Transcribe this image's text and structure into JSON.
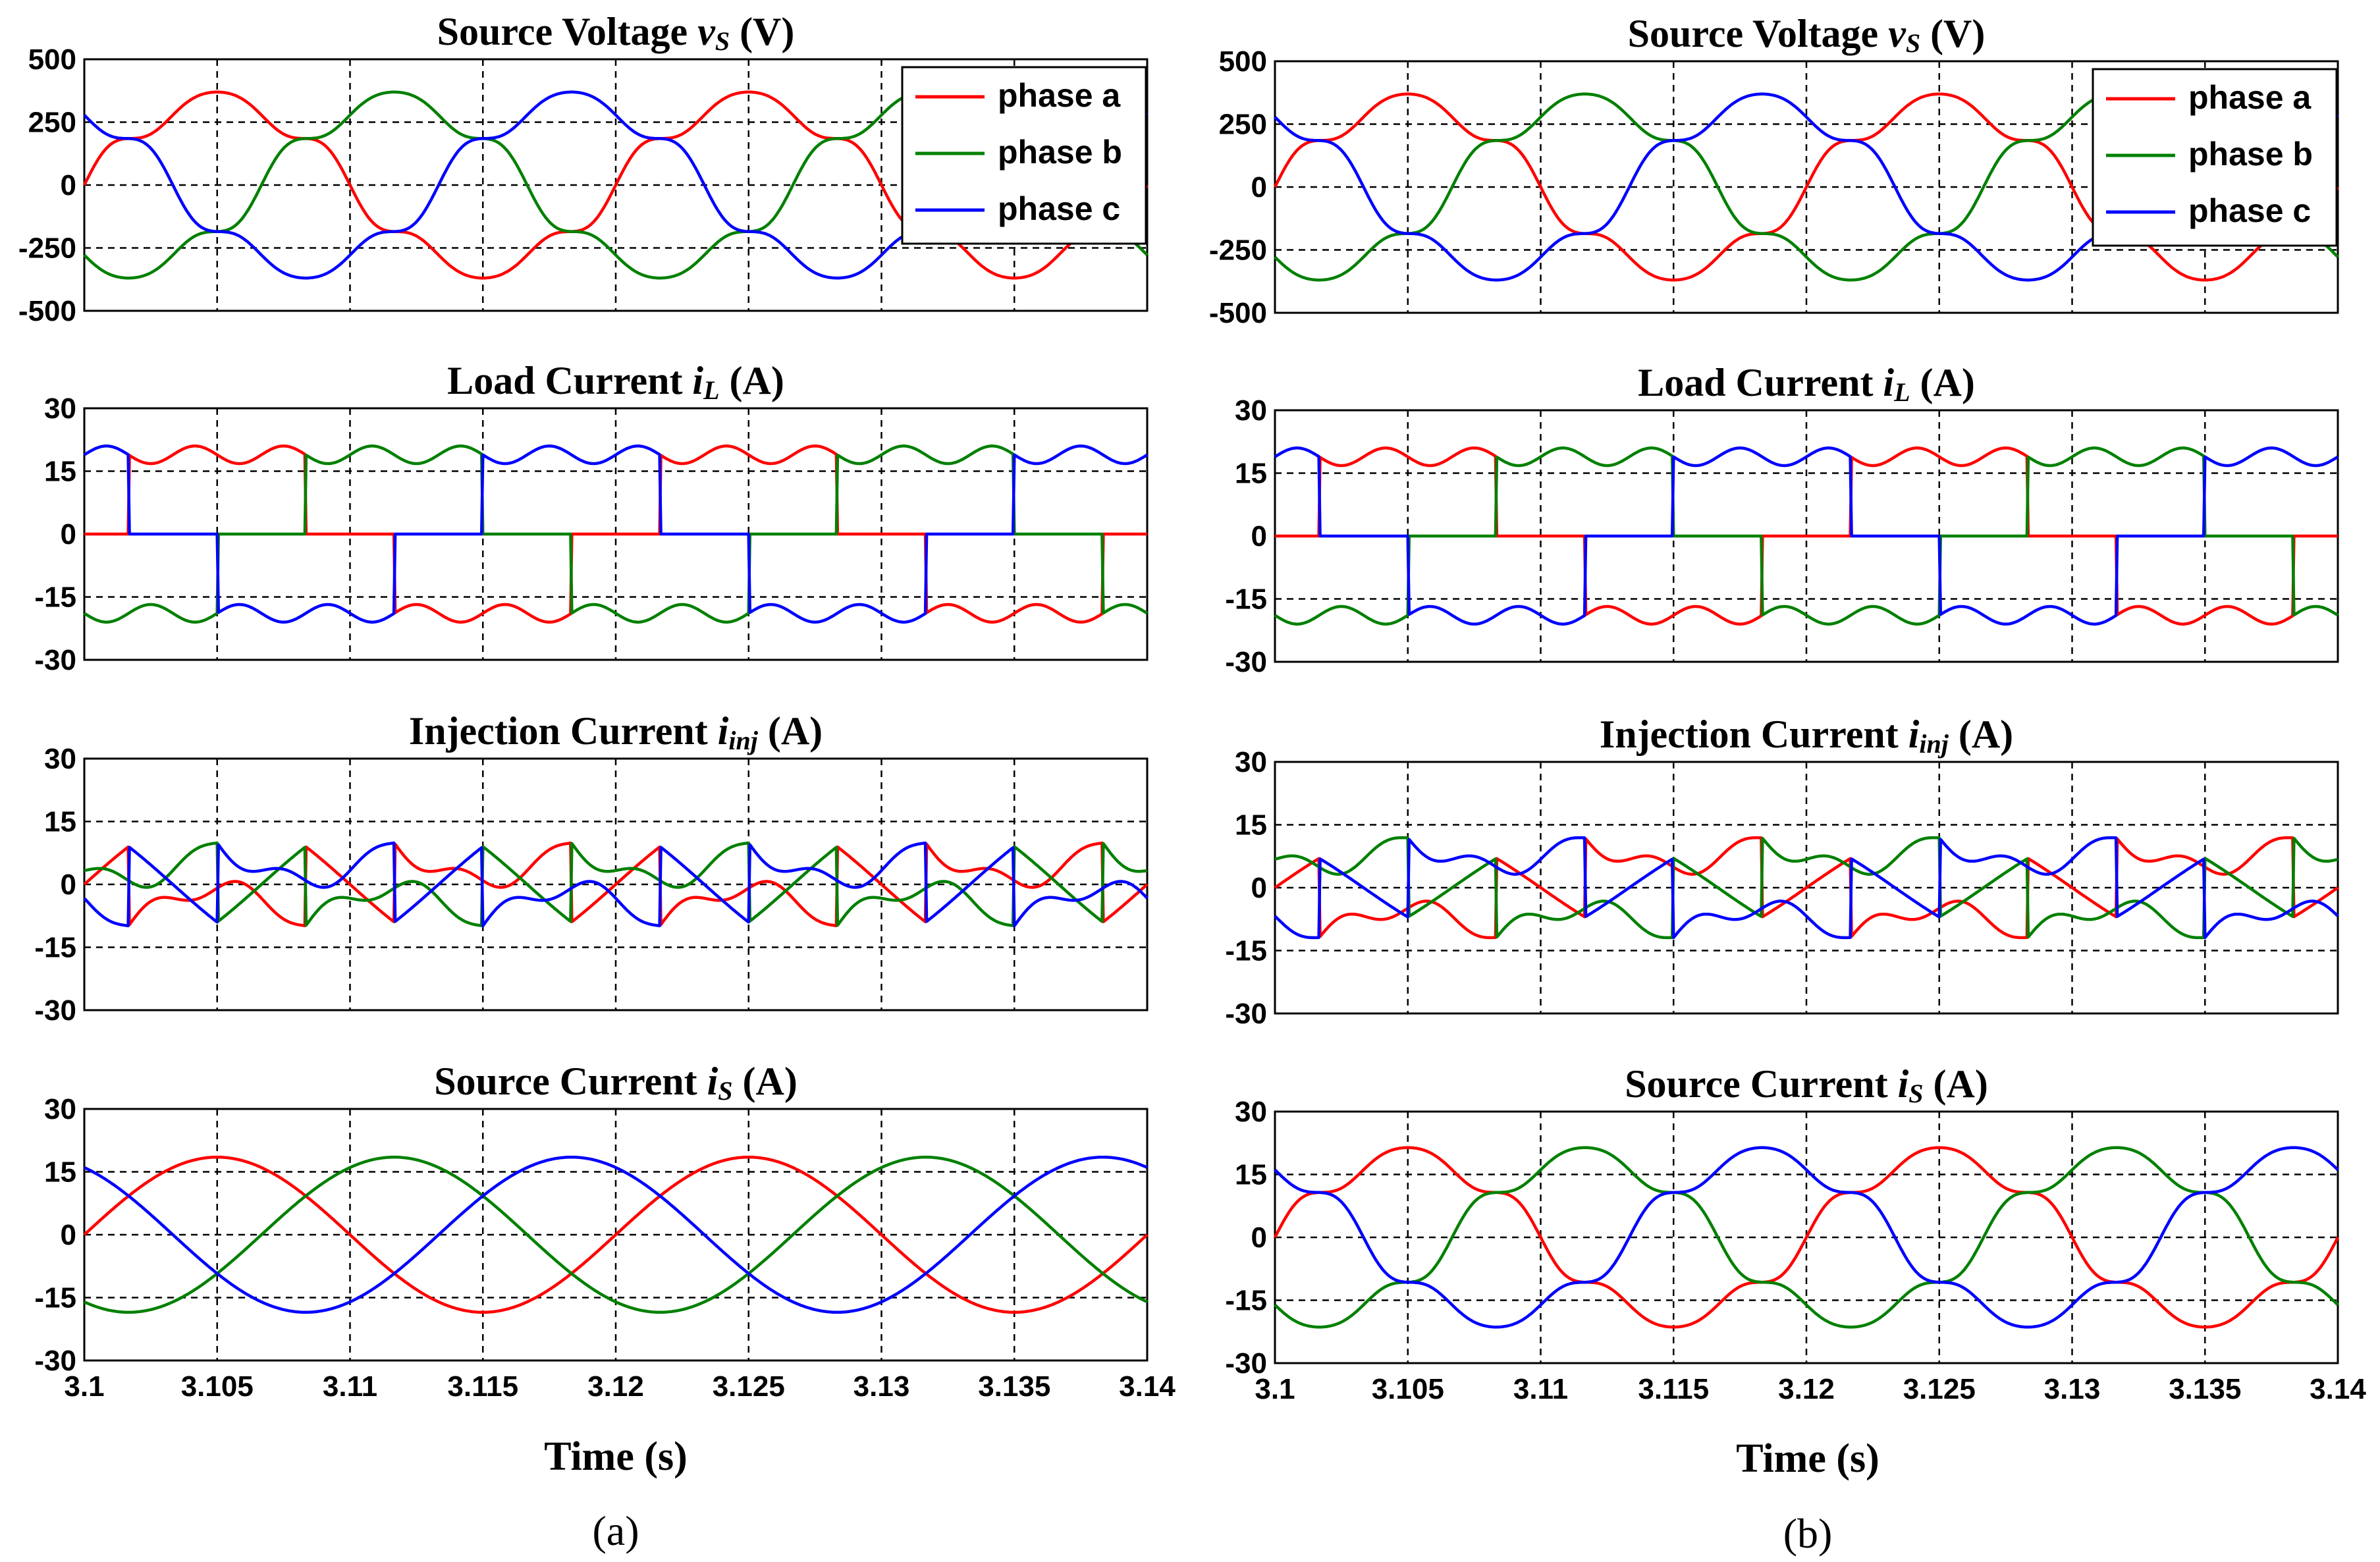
{
  "figure": {
    "columns": [
      {
        "caption": "(a)",
        "xlabel": "Time (s)"
      },
      {
        "caption": "(b)",
        "xlabel": "Time (s)"
      }
    ]
  },
  "chart_data": [
    {
      "id": "a-vs",
      "panel": "a",
      "type": "line",
      "title_text": "Source Voltage ",
      "title_sym": "v",
      "title_sub": "S",
      "title_unit": " (V)",
      "xlim": [
        3.1,
        3.14
      ],
      "ylim": [
        -500,
        500
      ],
      "yticks": [
        500,
        250,
        0,
        -250,
        -500
      ],
      "xticks": [
        3.1,
        3.105,
        3.11,
        3.115,
        3.12,
        3.125,
        3.13,
        3.135,
        3.14
      ],
      "show_xticks": false,
      "wave": {
        "kind": "voltage",
        "amp": 380,
        "flat": 0.15
      },
      "legend": [
        "phase a",
        "phase b",
        "phase c"
      ],
      "legend_position": "top-right"
    },
    {
      "id": "a-il",
      "panel": "a",
      "type": "line",
      "title_text": "Load Current ",
      "title_sym": "i",
      "title_sub": "L",
      "title_unit": " (A)",
      "xlim": [
        3.1,
        3.14
      ],
      "ylim": [
        -30,
        30
      ],
      "yticks": [
        30,
        15,
        0,
        -15,
        -30
      ],
      "xticks": [
        3.1,
        3.105,
        3.11,
        3.115,
        3.12,
        3.125,
        3.13,
        3.135,
        3.14
      ],
      "show_xticks": false,
      "wave": {
        "kind": "load",
        "amp": 21
      }
    },
    {
      "id": "a-inj",
      "panel": "a",
      "type": "line",
      "title_text": "Injection Current ",
      "title_sym": "i",
      "title_sub": "inj",
      "title_unit": " (A)",
      "xlim": [
        3.1,
        3.14
      ],
      "ylim": [
        -30,
        30
      ],
      "yticks": [
        30,
        15,
        0,
        -15,
        -30
      ],
      "xticks": [
        3.1,
        3.105,
        3.11,
        3.115,
        3.12,
        3.125,
        3.13,
        3.135,
        3.14
      ],
      "show_xticks": false,
      "wave": {
        "kind": "inj",
        "amp": 21,
        "sin": 18
      }
    },
    {
      "id": "a-is",
      "panel": "a",
      "type": "line",
      "title_text": "Source Current ",
      "title_sym": "i",
      "title_sub": "S",
      "title_unit": " (A)",
      "xlim": [
        3.1,
        3.14
      ],
      "ylim": [
        -30,
        30
      ],
      "yticks": [
        30,
        15,
        0,
        -15,
        -30
      ],
      "xticks": [
        3.1,
        3.105,
        3.11,
        3.115,
        3.12,
        3.125,
        3.13,
        3.135,
        3.14
      ],
      "show_xticks": true,
      "wave": {
        "kind": "sine",
        "amp": 18.5
      }
    },
    {
      "id": "b-vs",
      "panel": "b",
      "type": "line",
      "title_text": "Source Voltage ",
      "title_sym": "v",
      "title_sub": "S",
      "title_unit": " (V)",
      "xlim": [
        3.1,
        3.14
      ],
      "ylim": [
        -500,
        500
      ],
      "yticks": [
        500,
        250,
        0,
        -250,
        -500
      ],
      "xticks": [
        3.1,
        3.105,
        3.11,
        3.115,
        3.12,
        3.125,
        3.13,
        3.135,
        3.14
      ],
      "show_xticks": false,
      "wave": {
        "kind": "voltage",
        "amp": 380,
        "flat": 0.15
      },
      "legend": [
        "phase a",
        "phase b",
        "phase c"
      ],
      "legend_position": "top-right"
    },
    {
      "id": "b-il",
      "panel": "b",
      "type": "line",
      "title_text": "Load Current ",
      "title_sym": "i",
      "title_sub": "L",
      "title_unit": " (A)",
      "xlim": [
        3.1,
        3.14
      ],
      "ylim": [
        -30,
        30
      ],
      "yticks": [
        30,
        15,
        0,
        -15,
        -30
      ],
      "xticks": [
        3.1,
        3.105,
        3.11,
        3.115,
        3.12,
        3.125,
        3.13,
        3.135,
        3.14
      ],
      "show_xticks": false,
      "wave": {
        "kind": "load",
        "amp": 21
      }
    },
    {
      "id": "b-inj",
      "panel": "b",
      "type": "line",
      "title_text": "Injection Current ",
      "title_sym": "i",
      "title_sub": "inj",
      "title_unit": " (A)",
      "xlim": [
        3.1,
        3.14
      ],
      "ylim": [
        -30,
        30
      ],
      "yticks": [
        30,
        15,
        0,
        -15,
        -30
      ],
      "xticks": [
        3.1,
        3.105,
        3.11,
        3.115,
        3.12,
        3.125,
        3.13,
        3.135,
        3.14
      ],
      "show_xticks": false,
      "wave": {
        "kind": "inj",
        "amp": 21,
        "sin": 14
      }
    },
    {
      "id": "b-is",
      "panel": "b",
      "type": "line",
      "title_text": "Source Current ",
      "title_sym": "i",
      "title_sub": "S",
      "title_unit": " (A)",
      "xlim": [
        3.1,
        3.14
      ],
      "ylim": [
        -30,
        30
      ],
      "yticks": [
        30,
        15,
        0,
        -15,
        -30
      ],
      "xticks": [
        3.1,
        3.105,
        3.11,
        3.115,
        3.12,
        3.125,
        3.13,
        3.135,
        3.14
      ],
      "show_xticks": true,
      "wave": {
        "kind": "distorted",
        "amp": 22,
        "flat": 0.15
      }
    }
  ],
  "series": [
    {
      "name": "phase a",
      "color": "#ff0000",
      "phase_deg": 0
    },
    {
      "name": "phase b",
      "color": "#008000",
      "phase_deg": -120
    },
    {
      "name": "phase c",
      "color": "#0000ff",
      "phase_deg": 120
    }
  ],
  "signal": {
    "frequency_hz": 50
  }
}
